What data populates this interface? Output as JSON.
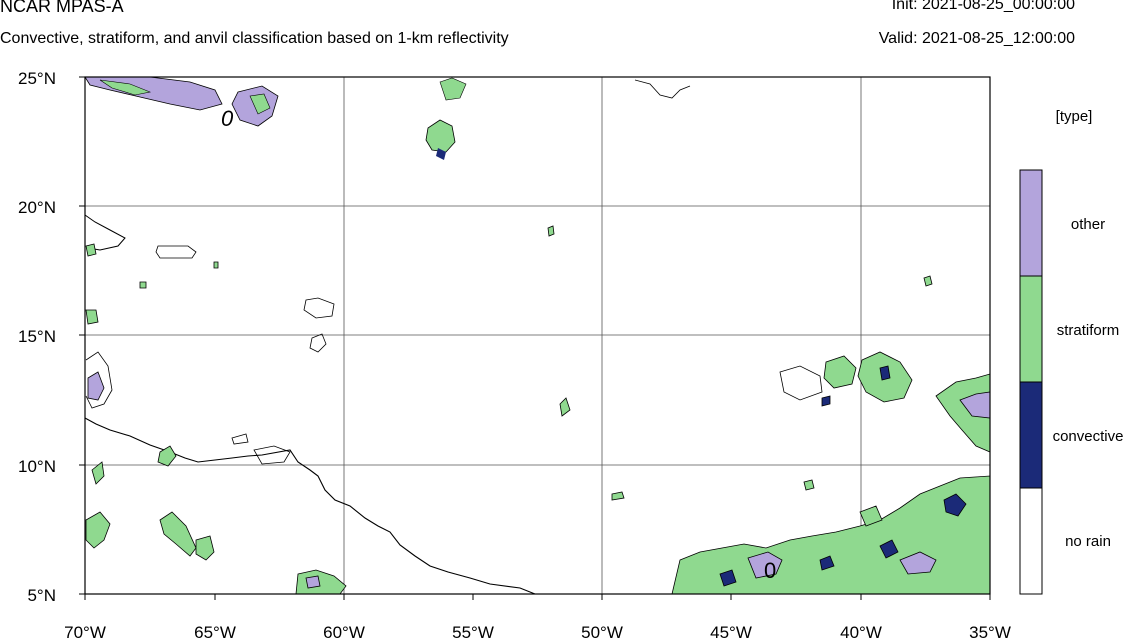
{
  "header": {
    "title": "NCAR MPAS-A",
    "subtitle": "Convective, stratiform, and anvil classification based on 1-km reflectivity",
    "init": "Init: 2021-08-25_00:00:00",
    "valid": "Valid: 2021-08-25_12:00:00"
  },
  "map": {
    "lon_labels": [
      "70°W",
      "65°W",
      "60°W",
      "55°W",
      "50°W",
      "45°W",
      "40°W",
      "35°W"
    ],
    "lat_labels": [
      "25°N",
      "20°N",
      "15°N",
      "10°N",
      "5°N"
    ],
    "contour_label": "0",
    "colors": {
      "convective": "#1b2a78",
      "stratiform": "#8fd98f",
      "other": "#b3a4dc",
      "line": "#000000"
    }
  },
  "legend": {
    "title": "[type]",
    "items": [
      {
        "label": "other",
        "color": "#b3a4dc"
      },
      {
        "label": "stratiform",
        "color": "#8fd98f"
      },
      {
        "label": "convective",
        "color": "#1b2a78"
      },
      {
        "label": "no rain",
        "color": "#ffffff"
      }
    ]
  }
}
